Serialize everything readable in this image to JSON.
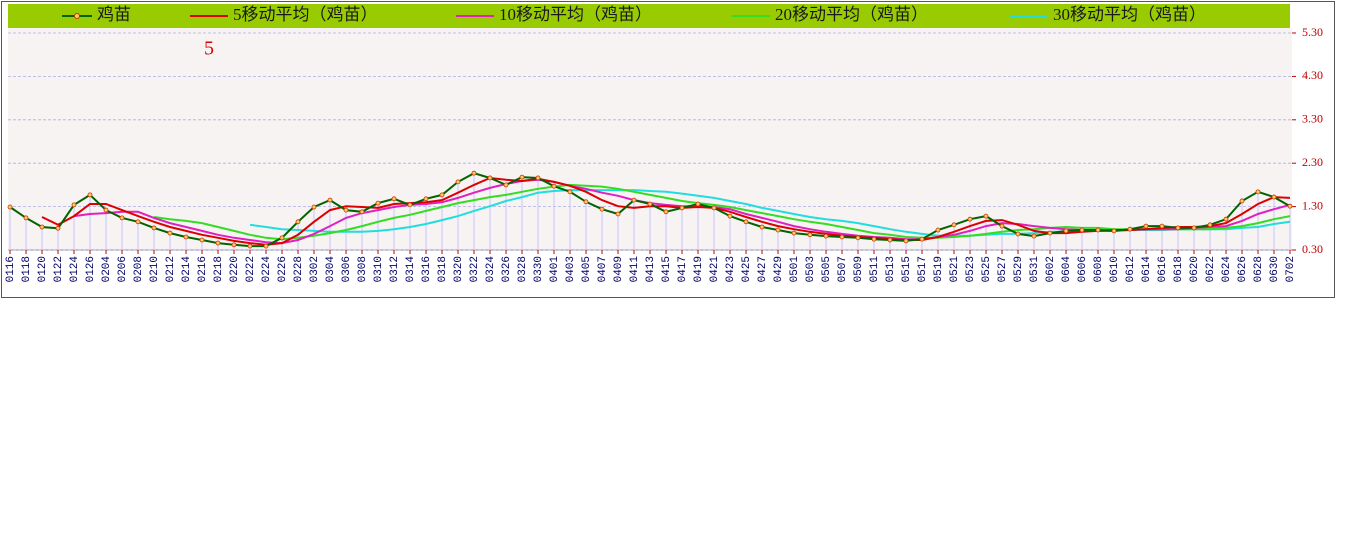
{
  "chart_data": {
    "type": "line",
    "annotation": "5",
    "grid": true,
    "legend": "top",
    "ylim": [
      0.3,
      5.3
    ],
    "yticks": [
      {
        "value": 0.3,
        "label": "0.30"
      },
      {
        "value": 1.3,
        "label": "1.30"
      },
      {
        "value": 2.3,
        "label": "2.30"
      },
      {
        "value": 3.3,
        "label": "3.30"
      },
      {
        "value": 4.3,
        "label": "4.30"
      },
      {
        "value": 5.3,
        "label": "5.30"
      }
    ],
    "categories": [
      "0116",
      "0118",
      "0120",
      "0122",
      "0124",
      "0126",
      "0204",
      "0206",
      "0208",
      "0210",
      "0212",
      "0214",
      "0216",
      "0218",
      "0220",
      "0222",
      "0224",
      "0226",
      "0228",
      "0302",
      "0304",
      "0306",
      "0308",
      "0310",
      "0312",
      "0314",
      "0316",
      "0318",
      "0320",
      "0322",
      "0324",
      "0326",
      "0328",
      "0330",
      "0401",
      "0403",
      "0405",
      "0407",
      "0409",
      "0411",
      "0413",
      "0415",
      "0417",
      "0419",
      "0421",
      "0423",
      "0425",
      "0427",
      "0429",
      "0501",
      "0503",
      "0505",
      "0507",
      "0509",
      "0511",
      "0513",
      "0515",
      "0517",
      "0519",
      "0521",
      "0523",
      "0525",
      "0527",
      "0529",
      "0531",
      "0602",
      "0604",
      "0606",
      "0608",
      "0610",
      "0612",
      "0614",
      "0616",
      "0618",
      "0620",
      "0622",
      "0624",
      "0626",
      "0628",
      "0630",
      "0702"
    ],
    "series": [
      {
        "name": "鸡苗",
        "color": "#006400",
        "values": [
          1.29,
          1.04,
          0.83,
          0.8,
          1.34,
          1.57,
          1.22,
          1.04,
          0.95,
          0.81,
          0.69,
          0.6,
          0.53,
          0.46,
          0.42,
          0.39,
          0.39,
          0.58,
          0.95,
          1.29,
          1.45,
          1.22,
          1.18,
          1.38,
          1.48,
          1.34,
          1.48,
          1.57,
          1.87,
          2.07,
          1.96,
          1.8,
          1.98,
          1.96,
          1.77,
          1.64,
          1.41,
          1.24,
          1.13,
          1.45,
          1.36,
          1.18,
          1.27,
          1.36,
          1.27,
          1.08,
          0.95,
          0.83,
          0.76,
          0.69,
          0.65,
          0.62,
          0.6,
          0.58,
          0.55,
          0.53,
          0.51,
          0.55,
          0.76,
          0.88,
          1.01,
          1.08,
          0.85,
          0.67,
          0.62,
          0.69,
          0.74,
          0.76,
          0.76,
          0.74,
          0.78,
          0.85,
          0.85,
          0.81,
          0.81,
          0.88,
          1.01,
          1.43,
          1.64,
          1.52,
          1.31
        ]
      },
      {
        "name": "5移动平均（鸡苗）",
        "color": "#dd0000",
        "values": [
          null,
          null,
          1.06,
          0.88,
          1.08,
          1.36,
          1.36,
          1.22,
          1.08,
          0.95,
          0.83,
          0.74,
          0.65,
          0.58,
          0.51,
          0.46,
          0.42,
          0.46,
          0.65,
          0.95,
          1.22,
          1.31,
          1.29,
          1.27,
          1.36,
          1.38,
          1.4,
          1.45,
          1.62,
          1.8,
          1.96,
          1.92,
          1.89,
          1.94,
          1.87,
          1.78,
          1.64,
          1.45,
          1.31,
          1.27,
          1.31,
          1.31,
          1.27,
          1.29,
          1.27,
          1.18,
          1.06,
          0.95,
          0.85,
          0.78,
          0.72,
          0.67,
          0.63,
          0.6,
          0.58,
          0.55,
          0.53,
          0.53,
          0.6,
          0.72,
          0.85,
          0.97,
          0.99,
          0.88,
          0.74,
          0.69,
          0.69,
          0.72,
          0.74,
          0.76,
          0.76,
          0.78,
          0.81,
          0.83,
          0.83,
          0.85,
          0.92,
          1.13,
          1.36,
          1.52,
          1.5
        ]
      },
      {
        "name": "10移动平均（鸡苗）",
        "color": "#e020c0",
        "values": [
          null,
          null,
          null,
          null,
          1.08,
          1.13,
          1.15,
          1.18,
          1.18,
          1.04,
          0.92,
          0.83,
          0.74,
          0.65,
          0.58,
          0.53,
          0.48,
          0.46,
          0.53,
          0.67,
          0.85,
          1.04,
          1.15,
          1.22,
          1.29,
          1.34,
          1.36,
          1.4,
          1.5,
          1.62,
          1.73,
          1.82,
          1.89,
          1.92,
          1.87,
          1.78,
          1.71,
          1.62,
          1.55,
          1.45,
          1.38,
          1.34,
          1.31,
          1.31,
          1.29,
          1.24,
          1.13,
          1.04,
          0.95,
          0.85,
          0.78,
          0.72,
          0.67,
          0.63,
          0.6,
          0.58,
          0.55,
          0.55,
          0.6,
          0.65,
          0.74,
          0.85,
          0.92,
          0.9,
          0.85,
          0.81,
          0.78,
          0.76,
          0.74,
          0.74,
          0.76,
          0.78,
          0.78,
          0.78,
          0.81,
          0.83,
          0.85,
          0.97,
          1.13,
          1.24,
          1.34
        ]
      },
      {
        "name": "20移动平均（鸡苗）",
        "color": "#33dd22",
        "values": [
          null,
          null,
          null,
          null,
          null,
          null,
          null,
          null,
          null,
          1.06,
          1.01,
          0.97,
          0.92,
          0.83,
          0.74,
          0.65,
          0.58,
          0.55,
          0.58,
          0.63,
          0.69,
          0.76,
          0.85,
          0.95,
          1.04,
          1.11,
          1.2,
          1.29,
          1.38,
          1.45,
          1.52,
          1.57,
          1.64,
          1.71,
          1.76,
          1.8,
          1.78,
          1.76,
          1.71,
          1.64,
          1.57,
          1.5,
          1.43,
          1.38,
          1.34,
          1.29,
          1.22,
          1.15,
          1.08,
          1.01,
          0.95,
          0.9,
          0.83,
          0.76,
          0.69,
          0.65,
          0.6,
          0.58,
          0.58,
          0.6,
          0.63,
          0.67,
          0.72,
          0.76,
          0.78,
          0.81,
          0.83,
          0.81,
          0.81,
          0.78,
          0.78,
          0.78,
          0.78,
          0.78,
          0.78,
          0.78,
          0.81,
          0.85,
          0.92,
          1.01,
          1.08
        ]
      },
      {
        "name": "30移动平均（鸡苗）",
        "color": "#22dddd",
        "values": [
          null,
          null,
          null,
          null,
          null,
          null,
          null,
          null,
          null,
          null,
          null,
          null,
          null,
          null,
          null,
          0.88,
          0.83,
          0.78,
          0.76,
          0.74,
          0.72,
          0.72,
          0.72,
          0.74,
          0.78,
          0.83,
          0.9,
          0.99,
          1.08,
          1.2,
          1.31,
          1.43,
          1.52,
          1.62,
          1.66,
          1.68,
          1.68,
          1.68,
          1.68,
          1.68,
          1.66,
          1.64,
          1.6,
          1.55,
          1.5,
          1.43,
          1.36,
          1.27,
          1.2,
          1.13,
          1.06,
          1.01,
          0.97,
          0.92,
          0.85,
          0.78,
          0.72,
          0.67,
          0.63,
          0.63,
          0.63,
          0.65,
          0.67,
          0.67,
          0.69,
          0.72,
          0.72,
          0.74,
          0.74,
          0.74,
          0.76,
          0.76,
          0.76,
          0.78,
          0.78,
          0.78,
          0.78,
          0.81,
          0.83,
          0.9,
          0.95
        ]
      }
    ]
  }
}
